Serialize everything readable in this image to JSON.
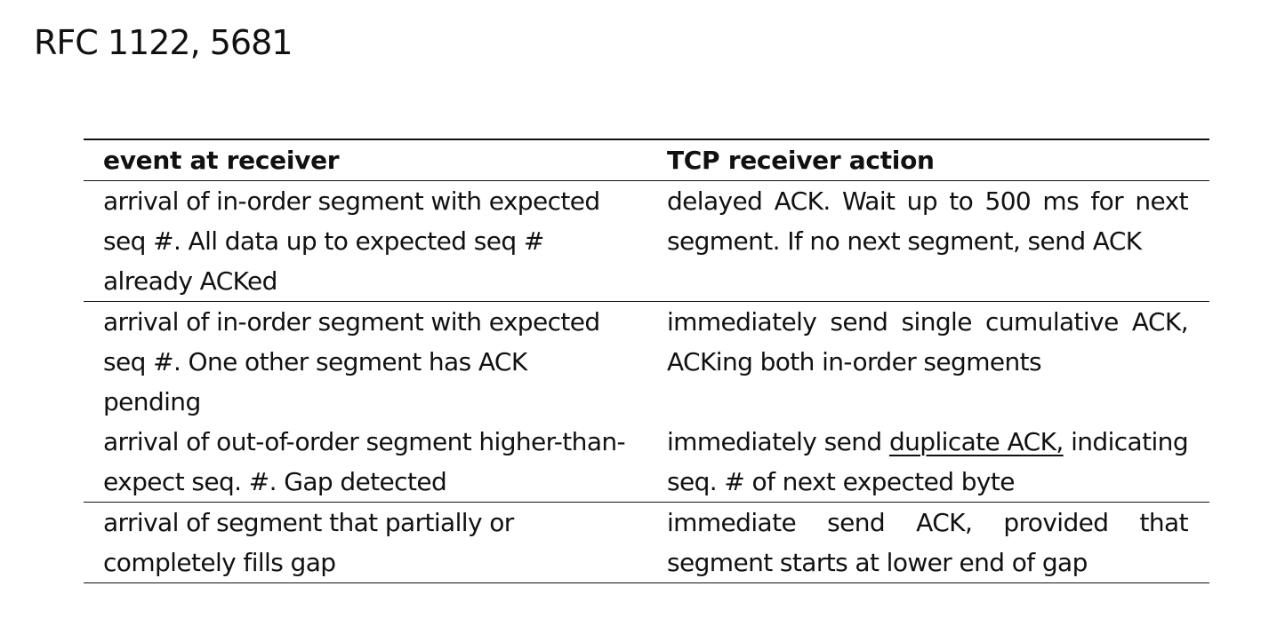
{
  "title": "RFC 1122, 5681",
  "table": {
    "headers": {
      "event": "event at receiver",
      "action": "TCP receiver action"
    },
    "rows": [
      {
        "event": "arrival of in-order segment with expected seq #. All data up to expected seq # already ACKed",
        "action": "delayed ACK. Wait up to 500 ms for next segment. If no next segment, send ACK"
      },
      {
        "event": "arrival of in-order segment with expected seq #. One other segment has ACK pending",
        "action": "immediately send single cumulative ACK, ACKing both in-order segments"
      },
      {
        "event": "arrival of out-of-order segment higher-than-expect seq. #. Gap detected",
        "action_before": "immediately send ",
        "action_underlined": "duplicate ACK,",
        "action_after": " indicating seq. # of next expected byte"
      },
      {
        "event": "arrival of segment that partially or completely fills gap",
        "action": "immediate send ACK, provided that segment starts at lower end of gap"
      }
    ]
  }
}
